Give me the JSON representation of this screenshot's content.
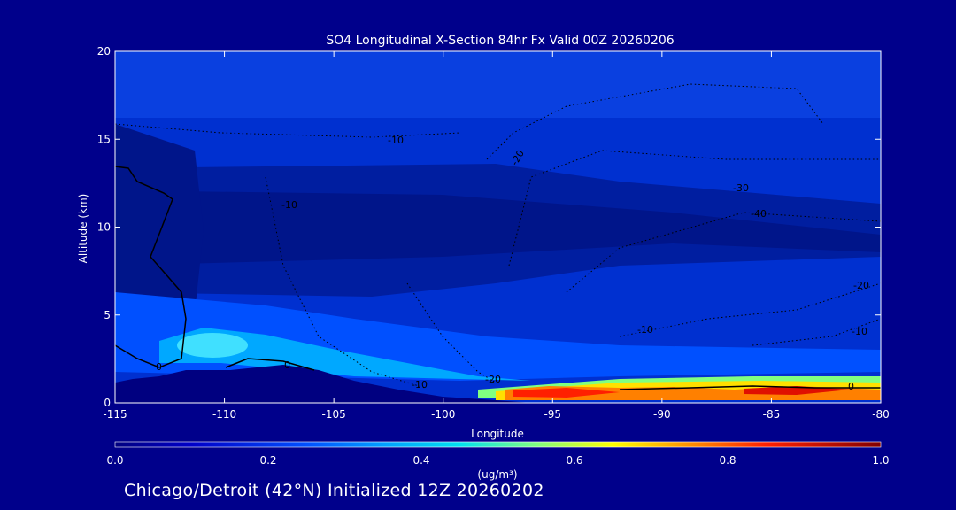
{
  "chart_data": {
    "type": "heatmap",
    "title": "SO4 Longitudinal X-Section 84hr  Fx Valid 00Z 20260206",
    "xlabel": "Longitude",
    "ylabel": "Altitude (km)",
    "xlim": [
      -115,
      -80
    ],
    "ylim": [
      0,
      20
    ],
    "x_ticks": [
      "-115",
      "-110",
      "-105",
      "-100",
      "-95",
      "-90",
      "-85",
      "-80"
    ],
    "y_ticks": [
      "0",
      "5",
      "10",
      "15",
      "20"
    ],
    "colorbar": {
      "label": "(ug/m³)",
      "range": [
        0.0,
        1.0
      ],
      "ticks": [
        "0.0",
        "0.2",
        "0.4",
        "0.6",
        "0.8",
        "1.0"
      ]
    },
    "contour_labels": [
      "0",
      "0",
      "0",
      "-10",
      "-10",
      "-20",
      "-20",
      "-30",
      "-40",
      "-10",
      "-10",
      "-20",
      "-10"
    ],
    "subtitle": "Chicago/Detroit (42°N) Initialized 12Z 20260202"
  }
}
